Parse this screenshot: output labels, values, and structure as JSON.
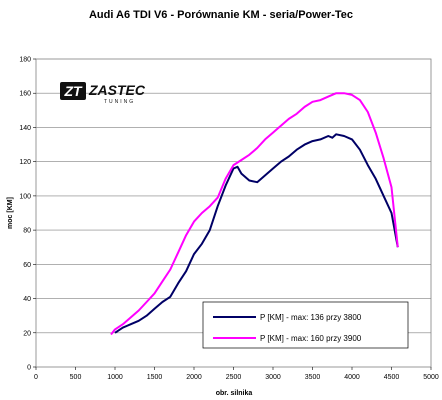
{
  "chart_data": {
    "type": "line",
    "title": "Audi A6 TDI V6 - Porównanie KM - seria/Power-Tec",
    "xlabel": "obr. silnika",
    "ylabel": "moc [KM]",
    "xlim": [
      0,
      5000
    ],
    "ylim": [
      0,
      180
    ],
    "x_ticks": [
      0,
      500,
      1000,
      1500,
      2000,
      2500,
      3000,
      3500,
      4000,
      4500,
      5000
    ],
    "y_ticks": [
      0,
      20,
      40,
      60,
      80,
      100,
      120,
      140,
      160,
      180
    ],
    "grid": "horizontal",
    "legend_position": "bottom-right",
    "logo_text": [
      "ZT",
      "ZASTEC",
      "TUNING"
    ],
    "series": [
      {
        "name": "P [KM] - max: 136 przy 3800",
        "color": "#000066",
        "x": [
          1000,
          1100,
          1200,
          1300,
          1400,
          1500,
          1600,
          1700,
          1800,
          1900,
          2000,
          2100,
          2200,
          2300,
          2400,
          2500,
          2550,
          2600,
          2700,
          2800,
          2900,
          3000,
          3100,
          3200,
          3300,
          3400,
          3500,
          3600,
          3700,
          3750,
          3800,
          3900,
          4000,
          4100,
          4200,
          4300,
          4400,
          4500,
          4580
        ],
        "values": [
          20,
          23,
          25,
          27,
          30,
          34,
          38,
          41,
          49,
          56,
          66,
          72,
          80,
          94,
          106,
          116,
          117,
          113,
          109,
          108,
          112,
          116,
          120,
          123,
          127,
          130,
          132,
          133,
          135,
          134,
          136,
          135,
          133,
          127,
          118,
          110,
          100,
          90,
          70
        ]
      },
      {
        "name": "P [KM] - max: 160 przy 3900",
        "color": "#ff00ff",
        "x": [
          950,
          1000,
          1100,
          1200,
          1300,
          1400,
          1500,
          1600,
          1700,
          1800,
          1900,
          2000,
          2100,
          2200,
          2300,
          2400,
          2500,
          2600,
          2700,
          2800,
          2900,
          3000,
          3100,
          3200,
          3300,
          3400,
          3500,
          3600,
          3700,
          3800,
          3900,
          4000,
          4100,
          4200,
          4300,
          4400,
          4500,
          4580
        ],
        "values": [
          19,
          22,
          25,
          29,
          33,
          38,
          43,
          50,
          57,
          67,
          77,
          85,
          90,
          94,
          99,
          110,
          118,
          121,
          124,
          128,
          133,
          137,
          141,
          145,
          148,
          152,
          155,
          156,
          158,
          160,
          160,
          159,
          156,
          149,
          137,
          122,
          105,
          70
        ]
      }
    ]
  }
}
